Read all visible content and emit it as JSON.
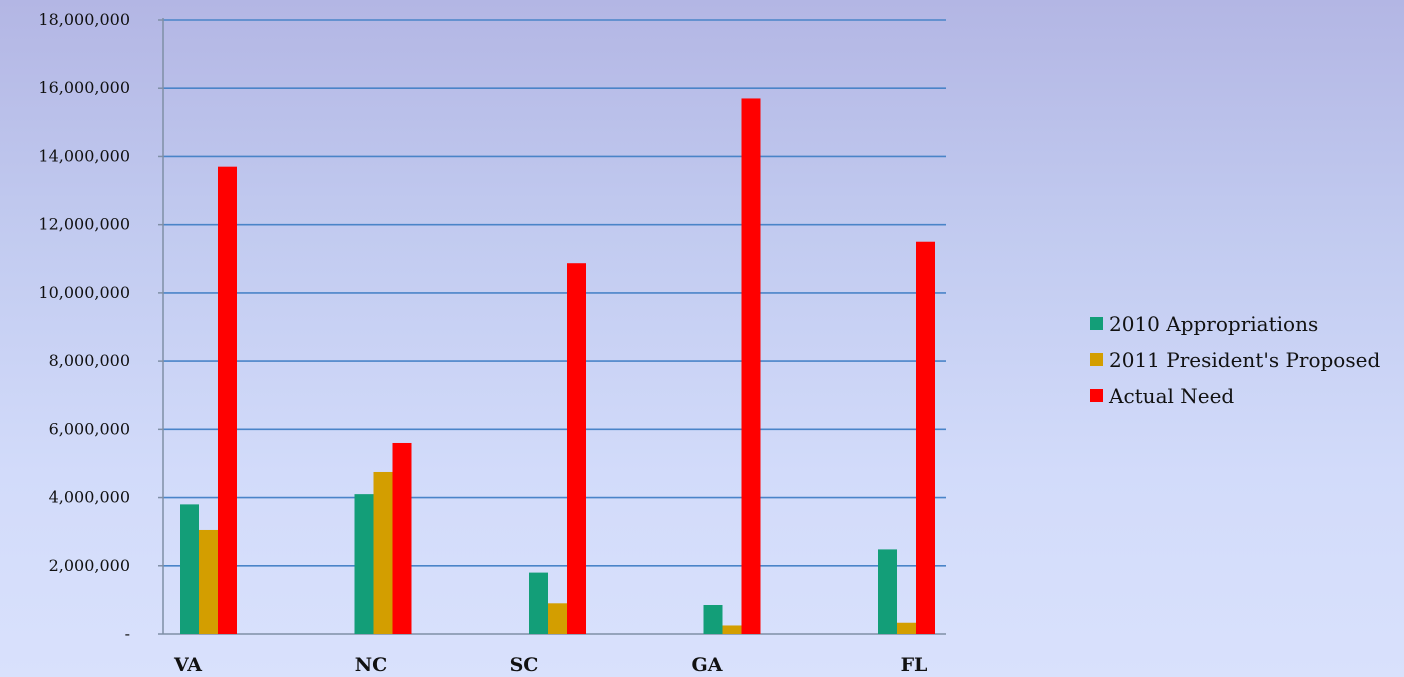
{
  "chart_data": {
    "type": "bar",
    "title": "",
    "xlabel": "",
    "ylabel": "",
    "categories": [
      "VA",
      "NC",
      "SC",
      "GA",
      "FL"
    ],
    "series": [
      {
        "name": "2010 Appropriations",
        "color": "#139e78",
        "values": [
          3800000,
          4100000,
          1800000,
          850000,
          2480000
        ]
      },
      {
        "name": "2011 President's Proposed",
        "color": "#d39e00",
        "values": [
          3050000,
          4750000,
          900000,
          250000,
          330000
        ]
      },
      {
        "name": "Actual Need",
        "color": "#ff0000",
        "values": [
          13700000,
          5600000,
          10870000,
          15700000,
          11500000
        ]
      }
    ],
    "ylim": [
      0,
      18000000
    ],
    "yticks": [
      0,
      2000000,
      4000000,
      6000000,
      8000000,
      10000000,
      12000000,
      14000000,
      16000000,
      18000000
    ],
    "ytick_labels": [
      "-",
      "2,000,000",
      "4,000,000",
      "6,000,000",
      "8,000,000",
      "10,000,000",
      "12,000,000",
      "14,000,000",
      "16,000,000",
      "18,000,000"
    ],
    "grid": true,
    "grid_color": "#4a84c8",
    "legend": "right"
  }
}
